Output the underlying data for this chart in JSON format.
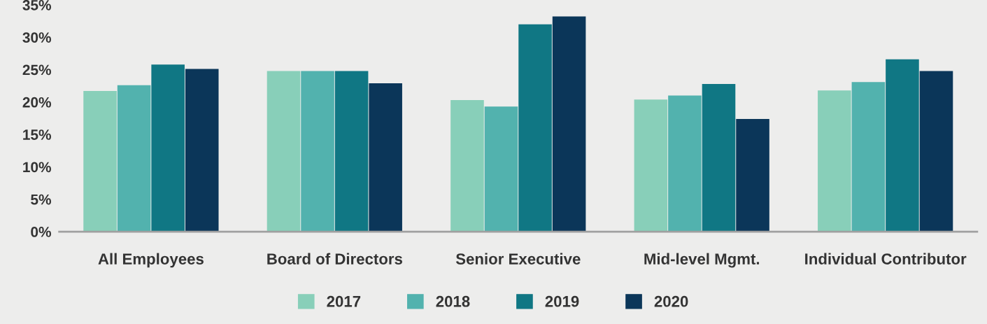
{
  "chart_data": {
    "type": "bar",
    "categories": [
      "All Employees",
      "Board of Directors",
      "Senior Executive",
      "Mid-level Mgmt.",
      "Individual Contributor"
    ],
    "series": [
      {
        "name": "2017",
        "color": "#88cfb9",
        "values": [
          21.7,
          24.8,
          20.3,
          20.4,
          21.8
        ]
      },
      {
        "name": "2018",
        "color": "#52b2ae",
        "values": [
          22.6,
          24.8,
          19.3,
          21.0,
          23.1
        ]
      },
      {
        "name": "2019",
        "color": "#107784",
        "values": [
          25.8,
          24.8,
          32.0,
          22.8,
          26.6
        ]
      },
      {
        "name": "2020",
        "color": "#0b3659",
        "values": [
          25.1,
          22.9,
          33.2,
          17.4,
          24.8
        ]
      }
    ],
    "ylim": [
      0,
      35
    ],
    "yticks": [
      {
        "value": 0,
        "label": "0%"
      },
      {
        "value": 5,
        "label": "5%"
      },
      {
        "value": 10,
        "label": "10%"
      },
      {
        "value": 15,
        "label": "15%"
      },
      {
        "value": 20,
        "label": "20%"
      },
      {
        "value": 25,
        "label": "25%"
      },
      {
        "value": 30,
        "label": "30%"
      },
      {
        "value": 35,
        "label": "35%"
      }
    ],
    "grid": false,
    "legend": "bottom"
  }
}
